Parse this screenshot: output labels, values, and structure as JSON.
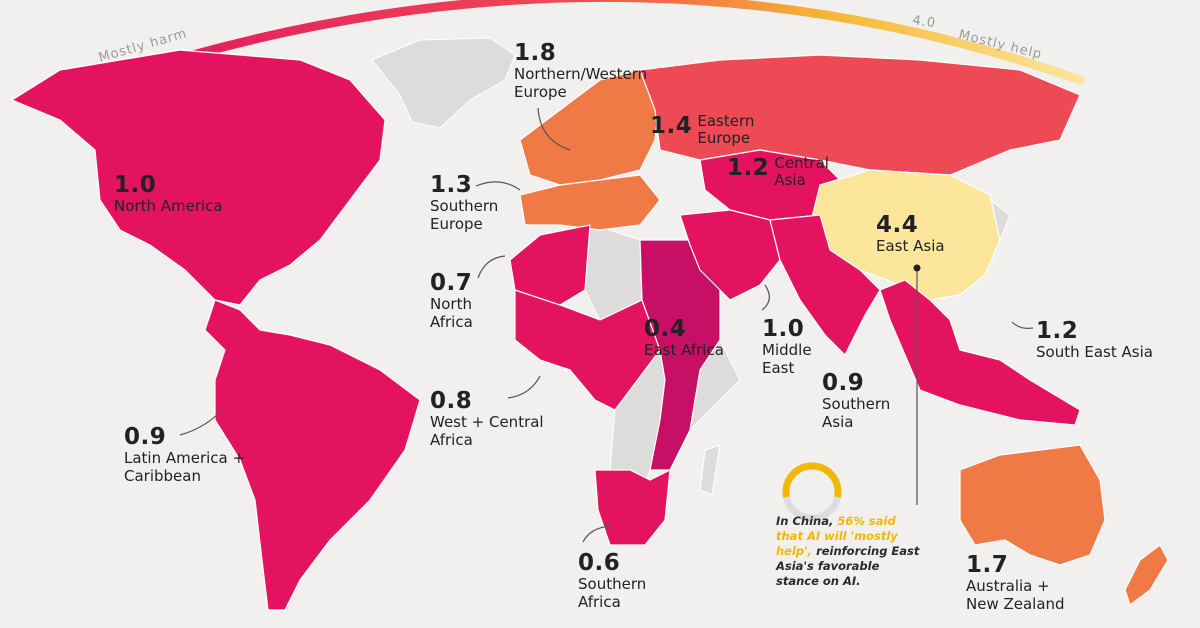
{
  "scale": {
    "left_label": "Mostly harm",
    "right_label": "Mostly help",
    "max_value": "4.0"
  },
  "colors": {
    "low": "#e3135f",
    "mid_low": "#c70f66",
    "mid": "#ee4a55",
    "orange": "#f07a45",
    "orange_light": "#f39144",
    "high": "#fbe69c",
    "no_data": "#dddcda"
  },
  "regions": [
    {
      "id": "north-america",
      "value": "1.0",
      "name": "North America"
    },
    {
      "id": "latin-america",
      "value": "0.9",
      "name": "Latin America + Caribbean"
    },
    {
      "id": "northern-western-europe",
      "value": "1.8",
      "name": "Northern/Western Europe"
    },
    {
      "id": "southern-europe",
      "value": "1.3",
      "name": "Southern Europe"
    },
    {
      "id": "eastern-europe",
      "value": "1.4",
      "name": "Eastern Europe"
    },
    {
      "id": "central-asia",
      "value": "1.2",
      "name": "Central Asia"
    },
    {
      "id": "east-asia",
      "value": "4.4",
      "name": "East Asia"
    },
    {
      "id": "north-africa",
      "value": "0.7",
      "name": "North Africa"
    },
    {
      "id": "west-central-africa",
      "value": "0.8",
      "name": "West + Central Africa"
    },
    {
      "id": "east-africa",
      "value": "0.4",
      "name": "East Africa"
    },
    {
      "id": "middle-east",
      "value": "1.0",
      "name": "Middle East"
    },
    {
      "id": "southern-asia",
      "value": "0.9",
      "name": "Southern Asia"
    },
    {
      "id": "south-east-asia",
      "value": "1.2",
      "name": "South East Asia"
    },
    {
      "id": "southern-africa",
      "value": "0.6",
      "name": "Southern Africa"
    },
    {
      "id": "australia-nz",
      "value": "1.7",
      "name": "Australia + New Zealand"
    }
  ],
  "callout": {
    "prefix": "In China,",
    "highlight": "56% said that AI will 'mostly help',",
    "suffix": "reinforcing East Asia's favorable stance on AI.",
    "percent": 56
  }
}
